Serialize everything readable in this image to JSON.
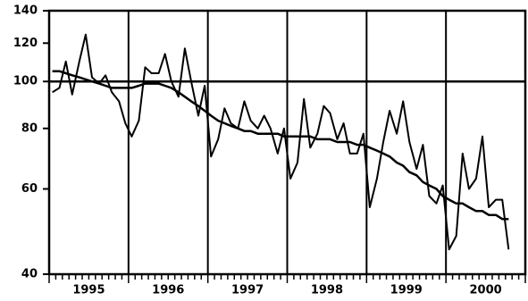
{
  "chart_data": {
    "type": "line",
    "log_y": true,
    "x": [
      1995.04,
      1995.13,
      1995.21,
      1995.29,
      1995.38,
      1995.46,
      1995.54,
      1995.63,
      1995.71,
      1995.79,
      1995.88,
      1995.96,
      1996.04,
      1996.13,
      1996.21,
      1996.29,
      1996.38,
      1996.46,
      1996.54,
      1996.63,
      1996.71,
      1996.79,
      1996.88,
      1996.96,
      1997.04,
      1997.13,
      1997.21,
      1997.29,
      1997.38,
      1997.46,
      1997.54,
      1997.63,
      1997.71,
      1997.79,
      1997.88,
      1997.96,
      1998.04,
      1998.13,
      1998.21,
      1998.29,
      1998.38,
      1998.46,
      1998.54,
      1998.63,
      1998.71,
      1998.79,
      1998.88,
      1998.96,
      1999.04,
      1999.13,
      1999.21,
      1999.29,
      1999.38,
      1999.46,
      1999.54,
      1999.63,
      1999.71,
      1999.79,
      1999.88,
      1999.96,
      2000.04,
      2000.13,
      2000.21,
      2000.29,
      2000.38,
      2000.46,
      2000.54,
      2000.63,
      2000.71,
      2000.79
    ],
    "series": [
      {
        "color": "#000000",
        "values": [
          95,
          97,
          110,
          94,
          110,
          125,
          102,
          99,
          103,
          95,
          91,
          82,
          77,
          83,
          107,
          104,
          104,
          114,
          100,
          93,
          117,
          100,
          85,
          98,
          70,
          76,
          88,
          82,
          80,
          91,
          83,
          80,
          85,
          80,
          71,
          80,
          63,
          68,
          92,
          73,
          78,
          89,
          86,
          76,
          82,
          71,
          71,
          78,
          55,
          63,
          75,
          87,
          78,
          91,
          75,
          66,
          74,
          58,
          56,
          61,
          45,
          48,
          71,
          60,
          63,
          77,
          55,
          57,
          57,
          45
        ]
      },
      {
        "color": "#000000",
        "values": [
          105,
          105,
          104,
          103,
          102,
          101,
          100,
          99,
          98,
          97,
          97,
          97,
          97,
          98,
          99,
          99,
          99,
          98,
          97,
          95,
          93,
          91,
          89,
          87,
          85,
          83,
          82,
          81,
          80,
          79,
          79,
          78,
          78,
          78,
          78,
          77,
          77,
          77,
          77,
          77,
          76,
          76,
          76,
          75,
          75,
          75,
          74,
          74,
          73,
          72,
          71,
          70,
          68,
          67,
          65,
          64,
          62,
          61,
          60,
          58,
          57,
          56,
          56,
          55,
          54,
          54,
          53,
          53,
          52,
          52
        ]
      }
    ],
    "xlim": [
      1995,
      2001
    ],
    "xticks": [
      {
        "value": 1995.5,
        "label": "1995"
      },
      {
        "value": 1996.5,
        "label": "1996"
      },
      {
        "value": 1997.5,
        "label": "1997"
      },
      {
        "value": 1998.5,
        "label": "1998"
      },
      {
        "value": 1999.5,
        "label": "1999"
      },
      {
        "value": 2000.5,
        "label": "2000"
      }
    ],
    "xgrid": [
      1996,
      1997,
      1998,
      1999,
      2000
    ],
    "ylim": [
      40,
      140
    ],
    "yticks": [
      40,
      60,
      80,
      100,
      120,
      140
    ],
    "hline": 100
  }
}
